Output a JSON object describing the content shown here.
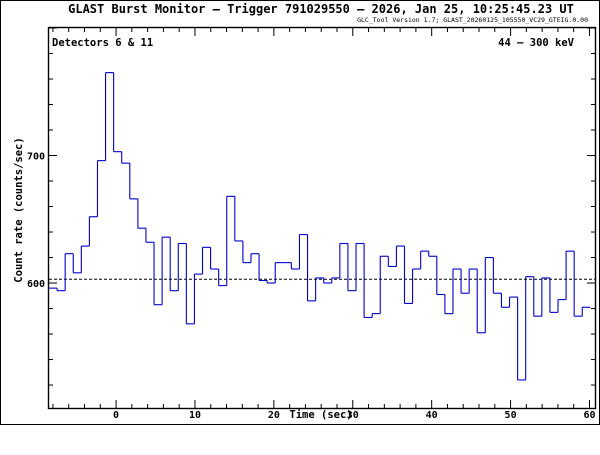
{
  "chart_data": {
    "type": "line",
    "style": "step",
    "title": "GLAST Burst Monitor  –  Trigger 791029550  –  2026, Jan 25, 10:25:45.23 UT",
    "subtitle": "GLC_Tool Version 1.7; GLAST_20260125_105550_VC29_GTEIG.0.00",
    "xlabel": "Time (sec)",
    "ylabel": "Count rate (counts/sec)",
    "annotation_left": "Detectors 6 & 11",
    "annotation_right": "44 – 300 keV",
    "xlim": [
      -8.5,
      60.7
    ],
    "ylim": [
      502,
      800
    ],
    "xticks": [
      0,
      10,
      20,
      30,
      40,
      50,
      60
    ],
    "xtick_labels": [
      "0",
      "10",
      "20",
      "30",
      "40",
      "50",
      "60"
    ],
    "yticks": [
      600,
      700
    ],
    "ytick_labels": [
      "600",
      "700"
    ],
    "bin_width": 1.024,
    "x_start": -8.5,
    "background_level": 603,
    "line_color": "#0000cc",
    "background_line_style": "dashed",
    "series": [
      {
        "values": [
          596,
          594,
          623,
          608,
          629,
          652,
          696,
          765,
          703,
          694,
          666,
          643,
          632,
          583,
          636,
          594,
          631,
          568,
          607,
          628,
          611,
          598,
          668,
          633,
          616,
          623,
          602,
          600,
          616,
          616,
          611,
          638,
          586,
          604,
          600,
          604,
          631,
          594,
          631,
          573,
          576,
          621,
          613,
          629,
          584,
          611,
          625,
          621,
          591,
          576,
          611,
          592,
          611,
          561,
          620,
          592,
          581,
          589,
          524,
          605,
          574,
          604,
          577,
          587,
          625,
          574,
          581
        ]
      }
    ]
  }
}
